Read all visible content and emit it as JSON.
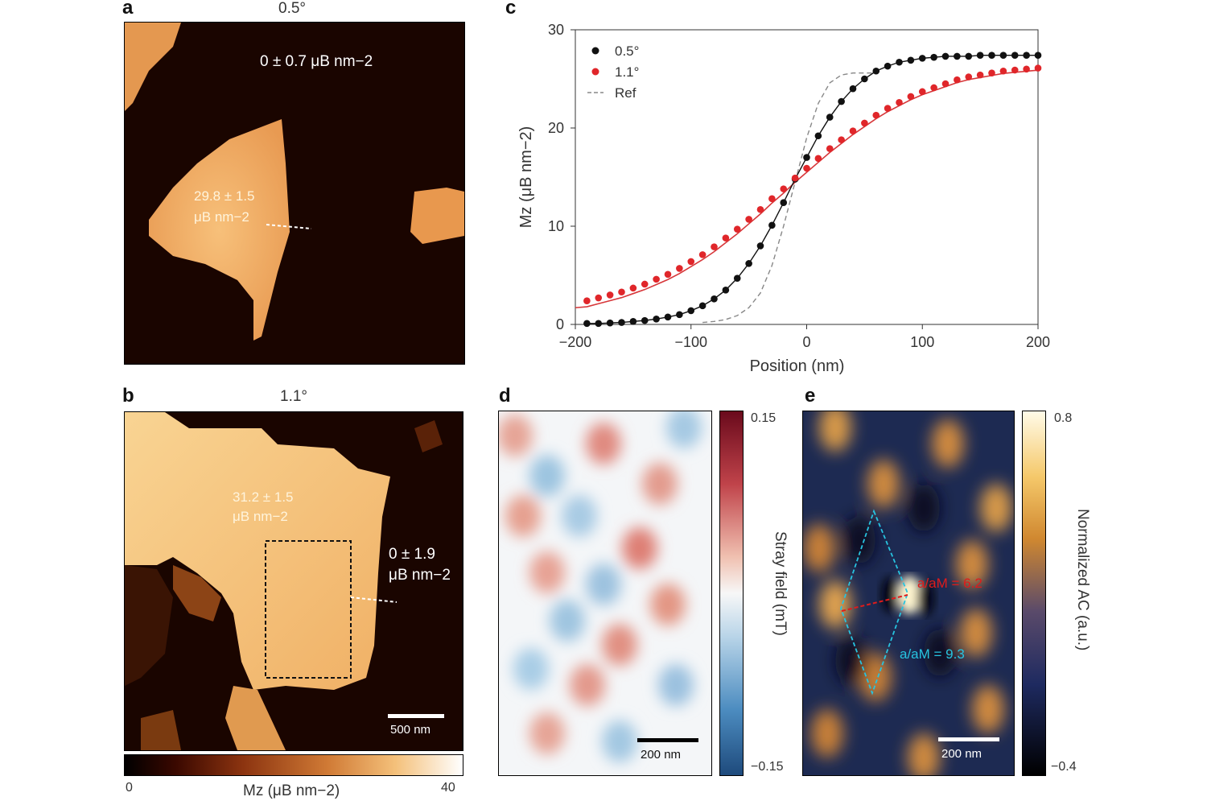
{
  "panel_a": {
    "letter": "a",
    "title": "0.5°",
    "ann_outer": "0 ± 0.7 μB nm−2",
    "ann_inner_1": "29.8 ± 1.5",
    "ann_inner_2": "μB nm−2"
  },
  "panel_b": {
    "letter": "b",
    "title": "1.1°",
    "ann_inner_1": "31.2 ± 1.5",
    "ann_inner_2": "μB nm−2",
    "ann_outer_1": "0 ± 1.9",
    "ann_outer_2": "μB nm−2",
    "scalebar_label": "500 nm",
    "colorbar_min": "0",
    "colorbar_max": "40",
    "colorbar_label": "Mz (μB nm−2)"
  },
  "panel_c": {
    "letter": "c",
    "legend": [
      "0.5°",
      "1.1°",
      "Ref"
    ],
    "xlabel": "Position (nm)",
    "ylabel": "Mz (μB nm−2)",
    "xticks": [
      "−200",
      "−100",
      "0",
      "100",
      "200"
    ],
    "yticks": [
      "0",
      "10",
      "20",
      "30"
    ]
  },
  "panel_d": {
    "letter": "d",
    "scalebar_label": "200 nm",
    "colorbar_max": "0.15",
    "colorbar_min": "−0.15",
    "colorbar_label": "Stray field (mT)"
  },
  "panel_e": {
    "letter": "e",
    "ann_red": "a/aM = 6.2",
    "ann_blue": "a/aM = 9.3",
    "scalebar_label": "200 nm",
    "colorbar_max": "0.8",
    "colorbar_min": "−0.4",
    "colorbar_label": "Normalized AC (a.u.)"
  },
  "colors": {
    "series_05": "#111111",
    "series_11": "#e0262a",
    "fit_11": "#d7373a",
    "ref": "#888888",
    "hex_outline": "#27c4e0",
    "red_arrow": "#e01b1b"
  },
  "chart_data": {
    "type": "scatter",
    "xlabel": "Position (nm)",
    "ylabel": "Mz (μB nm−2)",
    "xlim": [
      -200,
      200
    ],
    "ylim": [
      0,
      30
    ],
    "legend_position": "top-left",
    "series": [
      {
        "name": "0.5°",
        "kind": "points+fit",
        "x": [
          -190,
          -180,
          -170,
          -160,
          -150,
          -140,
          -130,
          -120,
          -110,
          -100,
          -90,
          -80,
          -70,
          -60,
          -50,
          -40,
          -30,
          -20,
          -10,
          0,
          10,
          20,
          30,
          40,
          50,
          60,
          70,
          80,
          90,
          100,
          110,
          120,
          130,
          140,
          150,
          160,
          170,
          180,
          190,
          200
        ],
        "y": [
          0.1,
          0.1,
          0.15,
          0.2,
          0.3,
          0.4,
          0.55,
          0.75,
          1.0,
          1.4,
          1.9,
          2.6,
          3.5,
          4.7,
          6.2,
          8.0,
          10.1,
          12.4,
          14.8,
          17.0,
          19.2,
          21.1,
          22.7,
          24.0,
          25.0,
          25.8,
          26.3,
          26.7,
          26.9,
          27.1,
          27.2,
          27.3,
          27.3,
          27.3,
          27.4,
          27.4,
          27.4,
          27.4,
          27.4,
          27.4
        ]
      },
      {
        "name": "1.1°",
        "kind": "points+fit",
        "x": [
          -190,
          -180,
          -170,
          -160,
          -150,
          -140,
          -130,
          -120,
          -110,
          -100,
          -90,
          -80,
          -70,
          -60,
          -50,
          -40,
          -30,
          -20,
          -10,
          0,
          10,
          20,
          30,
          40,
          50,
          60,
          70,
          80,
          90,
          100,
          110,
          120,
          130,
          140,
          150,
          160,
          170,
          180,
          190,
          200
        ],
        "y": [
          2.4,
          2.7,
          3.0,
          3.3,
          3.7,
          4.1,
          4.6,
          5.1,
          5.7,
          6.4,
          7.1,
          7.9,
          8.8,
          9.7,
          10.7,
          11.7,
          12.8,
          13.8,
          14.9,
          15.9,
          16.9,
          17.9,
          18.8,
          19.7,
          20.5,
          21.3,
          22.0,
          22.6,
          23.2,
          23.7,
          24.1,
          24.5,
          24.9,
          25.2,
          25.4,
          25.6,
          25.8,
          25.9,
          26.0,
          26.1
        ]
      },
      {
        "name": "Ref",
        "kind": "dashed-line",
        "x": [
          -90,
          -80,
          -70,
          -60,
          -50,
          -40,
          -30,
          -20,
          -10,
          0,
          10,
          20,
          30,
          40,
          50,
          60
        ],
        "y": [
          0.2,
          0.3,
          0.5,
          0.9,
          1.7,
          3.2,
          6.0,
          10.0,
          14.5,
          19.0,
          22.5,
          24.6,
          25.4,
          25.6,
          25.6,
          25.6
        ]
      }
    ]
  }
}
